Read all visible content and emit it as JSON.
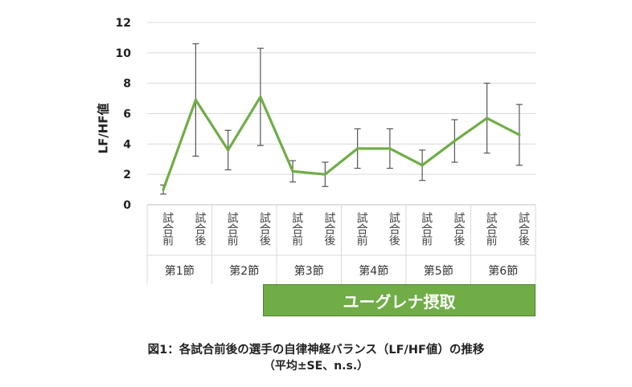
{
  "chart_data": {
    "type": "line",
    "ylabel": "LF/HF値",
    "ylim": [
      0,
      12
    ],
    "yticks": [
      "0",
      "2",
      "4",
      "6",
      "8",
      "10",
      "12"
    ],
    "grid": true,
    "categories": [
      "試合前",
      "試合後",
      "試合前",
      "試合後",
      "試合前",
      "試合後",
      "試合前",
      "試合後",
      "試合前",
      "試合後",
      "試合前",
      "試合後"
    ],
    "groups": [
      "第1節",
      "第2節",
      "第3節",
      "第4節",
      "第5節",
      "第6節"
    ],
    "series": [
      {
        "values": [
          1.0,
          6.9,
          3.6,
          7.1,
          2.2,
          2.0,
          3.7,
          3.7,
          2.6,
          4.2,
          5.7,
          4.6
        ],
        "error": [
          0.3,
          3.7,
          1.3,
          3.2,
          0.7,
          0.8,
          1.3,
          1.3,
          1.0,
          1.4,
          2.3,
          2.0
        ],
        "color": "#70ad47"
      }
    ]
  },
  "banner": {
    "text": "ユーグレナ摂取",
    "color": "#70ad47"
  },
  "caption": {
    "line1": "図1：各試合前後の選手の自律神経バランス（LF/HF値）の推移",
    "line2": "（平均±SE、n.s.）"
  }
}
